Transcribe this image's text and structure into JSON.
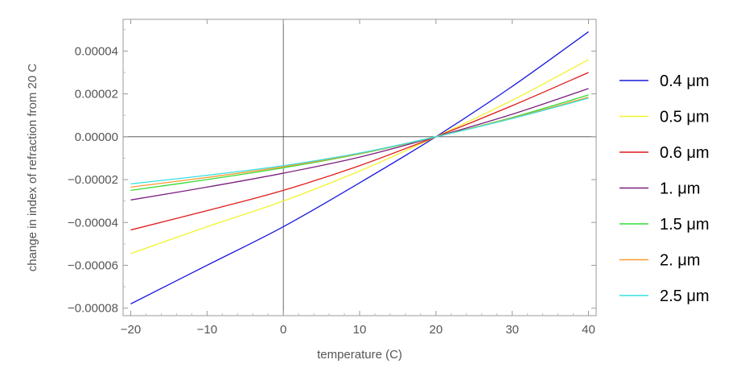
{
  "chart_data": {
    "type": "line",
    "xlabel": "temperature (C)",
    "ylabel": "change in index of refraction from 20 C",
    "xlim": [
      -21,
      41
    ],
    "ylim": [
      -8.35e-05,
      5.48e-05
    ],
    "x_ticks": [
      -20,
      -10,
      0,
      10,
      20,
      30,
      40
    ],
    "x_tick_labels": [
      "−20",
      "−10",
      "0",
      "10",
      "20",
      "30",
      "40"
    ],
    "y_ticks": [
      -8e-05,
      -6e-05,
      -4e-05,
      -2e-05,
      0,
      2e-05,
      4e-05
    ],
    "y_tick_labels": [
      "−0.00008",
      "−0.00006",
      "−0.00004",
      "−0.00002",
      "0.00000",
      "0.00002",
      "0.00004"
    ],
    "grid": false,
    "reference_lines": {
      "x": 0,
      "y": 0
    },
    "legend_position": "right",
    "x": [
      -20,
      -10,
      0,
      10,
      20,
      30,
      40
    ],
    "series": [
      {
        "name": "0.4 μm",
        "color": "#1a1adc",
        "values": [
          -7.8e-05,
          -6e-05,
          -4.2e-05,
          -2.15e-05,
          0,
          2.35e-05,
          4.9e-05
        ]
      },
      {
        "name": "0.5 μm",
        "color": "#f2f230",
        "values": [
          -5.45e-05,
          -4.2e-05,
          -3e-05,
          -1.6e-05,
          0,
          1.7e-05,
          3.6e-05
        ]
      },
      {
        "name": "0.6 μm",
        "color": "#e01c1c",
        "values": [
          -4.35e-05,
          -3.45e-05,
          -2.5e-05,
          -1.35e-05,
          0,
          1.45e-05,
          3e-05
        ]
      },
      {
        "name": "1. μm",
        "color": "#7a1f80",
        "values": [
          -2.95e-05,
          -2.35e-05,
          -1.7e-05,
          -9.5e-06,
          0,
          1.05e-05,
          2.25e-05
        ]
      },
      {
        "name": "1.5 μm",
        "color": "#33dd33",
        "values": [
          -2.5e-05,
          -2e-05,
          -1.45e-05,
          -8e-06,
          0,
          9e-06,
          1.95e-05
        ]
      },
      {
        "name": "2. μm",
        "color": "#ff9933",
        "values": [
          -2.35e-05,
          -1.9e-05,
          -1.4e-05,
          -7.8e-06,
          0,
          8.7e-06,
          1.85e-05
        ]
      },
      {
        "name": "2.5 μm",
        "color": "#33e0e0",
        "values": [
          -2.2e-05,
          -1.8e-05,
          -1.35e-05,
          -7.6e-06,
          0,
          8.5e-06,
          1.8e-05
        ]
      }
    ]
  }
}
